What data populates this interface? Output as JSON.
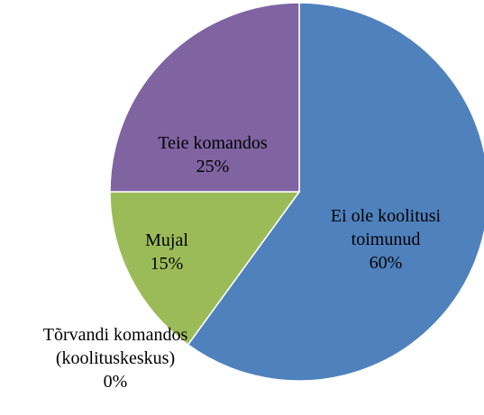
{
  "chart_data": {
    "type": "pie",
    "categories": [
      "Ei ole koolitusi toimunud",
      "Tõrvandi komandos (koolituskeskus)",
      "Mujal",
      "Teie komandos"
    ],
    "values": [
      60,
      0,
      15,
      25
    ],
    "value_labels": [
      "60%",
      "0%",
      "15%",
      "25%"
    ],
    "colors": [
      "#4f81bd",
      "#c0504d",
      "#9bbb59",
      "#8064a2"
    ]
  }
}
